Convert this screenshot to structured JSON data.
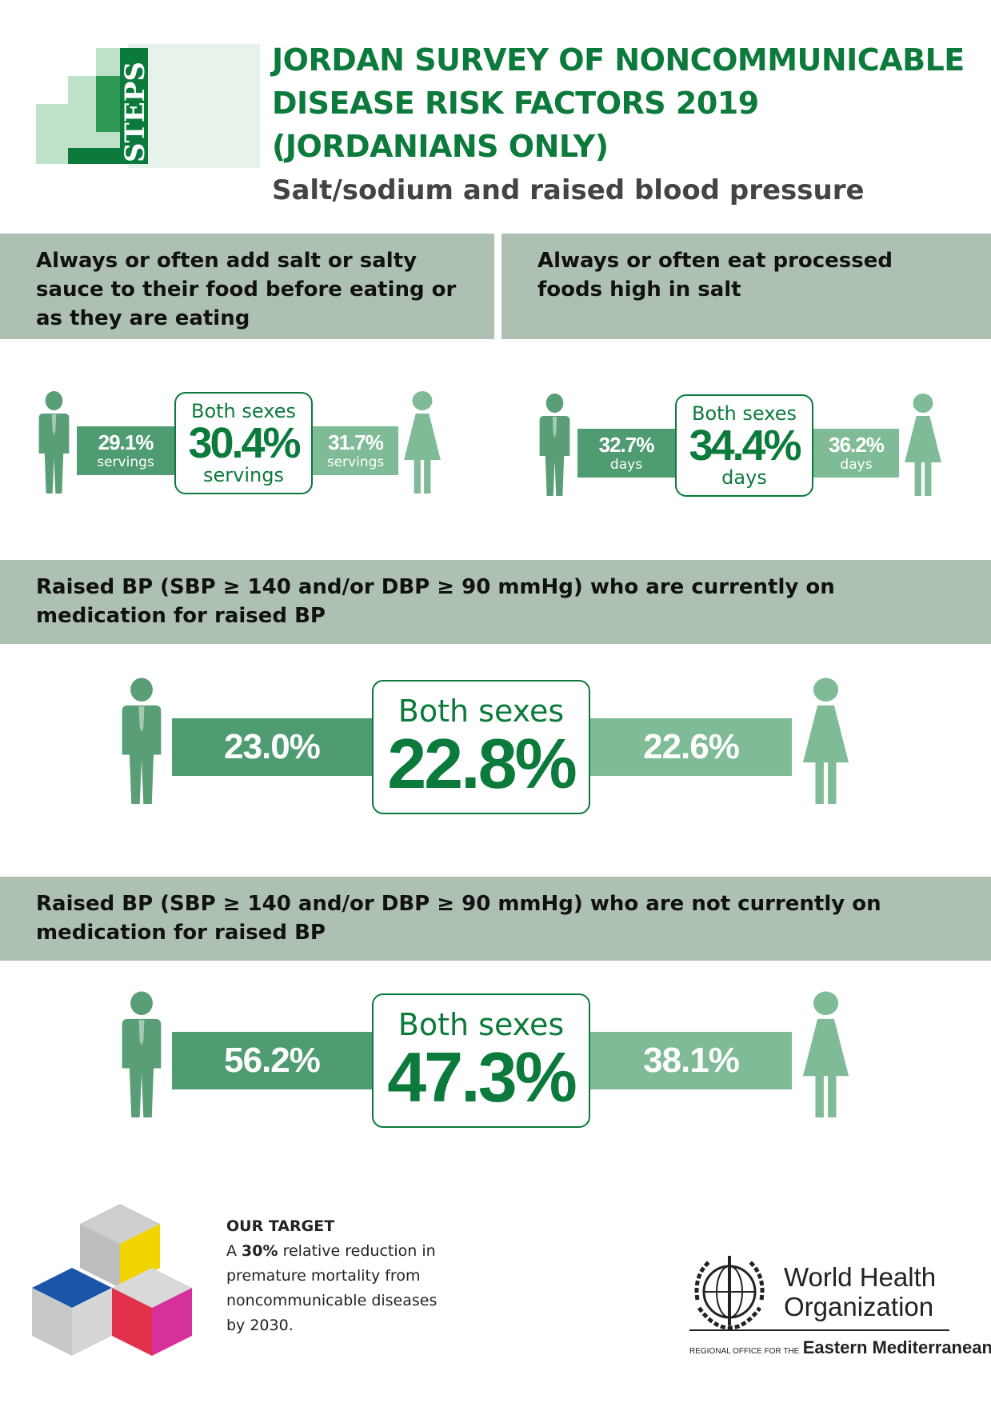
{
  "header": {
    "logo_label": "STEPS",
    "title_lines": [
      "JORDAN SURVEY OF NONCOMMUNICABLE",
      "DISEASE RISK FACTORS 2019",
      "(JORDANIANS ONLY)"
    ],
    "subtitle": "Salt/sodium and raised blood pressure"
  },
  "panels": [
    {
      "heading": "Always or often add salt or salty sauce to their food before eating or as they are eating",
      "male": {
        "value": "29.1%",
        "unit": "servings"
      },
      "both": {
        "label": "Both sexes",
        "value": "30.4%",
        "unit": "servings"
      },
      "female": {
        "value": "31.7%",
        "unit": "servings"
      }
    },
    {
      "heading": "Always or often eat processed foods high in salt",
      "male": {
        "value": "32.7%",
        "unit": "days"
      },
      "both": {
        "label": "Both sexes",
        "value": "34.4%",
        "unit": "days"
      },
      "female": {
        "value": "36.2%",
        "unit": "days"
      }
    },
    {
      "heading": "Raised BP (SBP ≥ 140 and/or DBP ≥ 90 mmHg) who are currently on medication for raised BP",
      "male": {
        "value": "23.0%"
      },
      "both": {
        "label": "Both sexes",
        "value": "22.8%"
      },
      "female": {
        "value": "22.6%"
      }
    },
    {
      "heading": "Raised BP (SBP ≥ 140 and/or DBP ≥ 90 mmHg) who are not currently on medication for raised BP",
      "male": {
        "value": "56.2%"
      },
      "both": {
        "label": "Both sexes",
        "value": "47.3%"
      },
      "female": {
        "value": "38.1%"
      }
    }
  ],
  "footer": {
    "target_heading": "OUR TARGET",
    "target_prefix": "A",
    "target_highlight": "30%",
    "target_text": "relative reduction in premature mortality from noncommunicable diseases by 2030.",
    "who_name": "World Health Organization",
    "region_prefix": "REGIONAL OFFICE FOR THE",
    "region_name": "Eastern Mediterranean"
  }
}
